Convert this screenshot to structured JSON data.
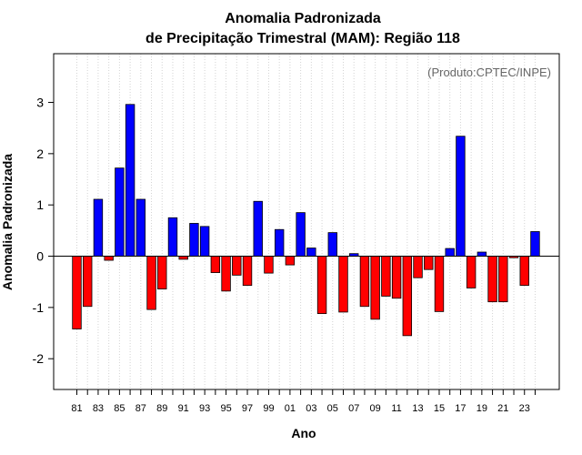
{
  "chart_data": {
    "type": "bar",
    "title": "Anomalia Padronizada",
    "subtitle": "de Precipitação Trimestral (MAM): Região 118",
    "xlabel": "Ano",
    "ylabel": "Anomalia Padronizada",
    "credit": "(Produto:CPTEC/INPE)",
    "ylim": [
      -2.6,
      3.95
    ],
    "yticks": [
      -2,
      -1,
      0,
      1,
      2,
      3
    ],
    "ytick_labels": [
      "-2",
      "-1",
      "0",
      "1",
      "2",
      "3"
    ],
    "xtick_labels": [
      "81",
      "83",
      "85",
      "87",
      "89",
      "91",
      "93",
      "95",
      "97",
      "99",
      "01",
      "03",
      "05",
      "07",
      "09",
      "11",
      "13",
      "15",
      "17",
      "19",
      "21",
      "23"
    ],
    "grid": true,
    "positive_color": "#0000ff",
    "negative_color": "#ff0000",
    "categories": [
      "1981",
      "1982",
      "1983",
      "1984",
      "1985",
      "1986",
      "1987",
      "1988",
      "1989",
      "1990",
      "1991",
      "1992",
      "1993",
      "1994",
      "1995",
      "1996",
      "1997",
      "1998",
      "1999",
      "2000",
      "2001",
      "2002",
      "2003",
      "2004",
      "2005",
      "2006",
      "2007",
      "2008",
      "2009",
      "2010",
      "2011",
      "2012",
      "2013",
      "2014",
      "2015",
      "2016",
      "2017",
      "2018",
      "2019",
      "2020",
      "2021",
      "2022",
      "2023",
      "2024"
    ],
    "values": [
      -1.42,
      -0.98,
      1.11,
      -0.08,
      1.72,
      2.96,
      1.11,
      -1.04,
      -0.64,
      0.75,
      -0.06,
      0.64,
      0.58,
      -0.32,
      -0.68,
      -0.37,
      -0.57,
      1.07,
      -0.33,
      0.52,
      -0.17,
      0.85,
      0.16,
      -1.12,
      0.46,
      -1.09,
      0.05,
      -0.98,
      -1.23,
      -0.78,
      -0.82,
      -1.55,
      -0.42,
      -0.26,
      -1.08,
      0.15,
      2.34,
      -0.62,
      0.08,
      -0.89,
      -0.89,
      -0.03,
      -0.57,
      0.48
    ]
  }
}
